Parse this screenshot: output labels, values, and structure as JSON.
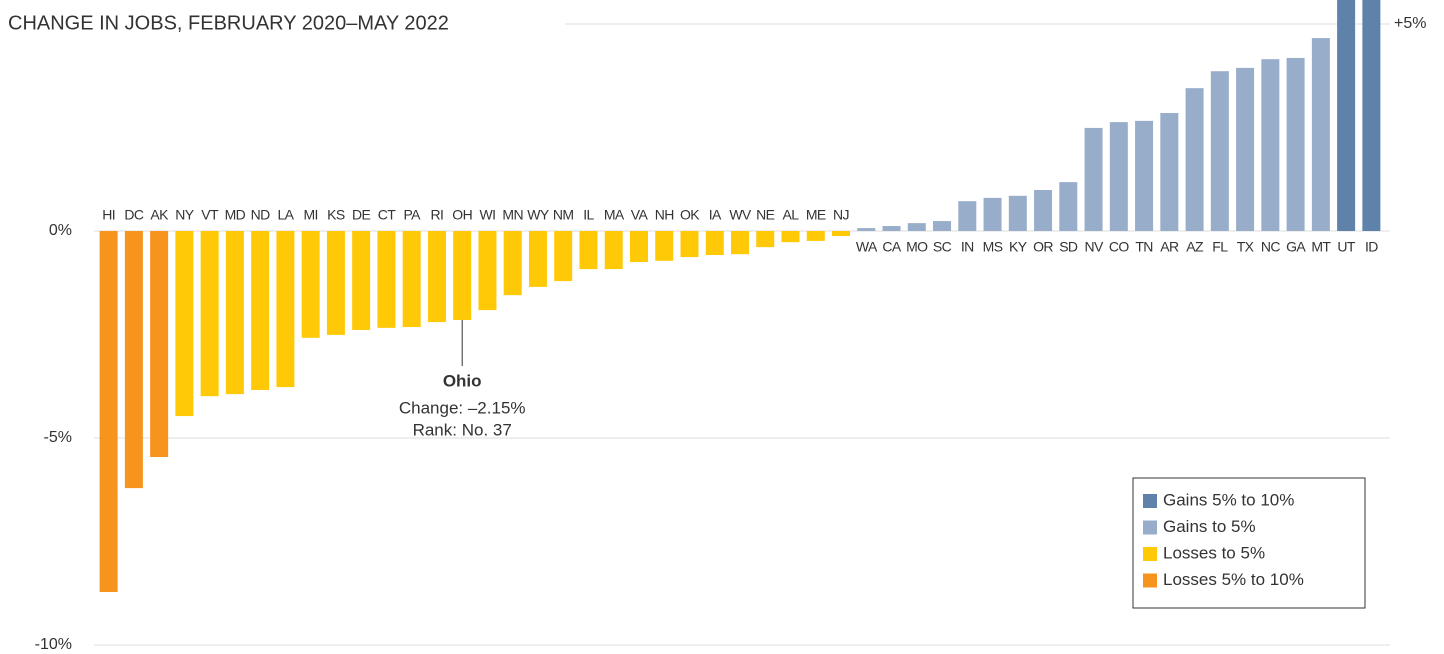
{
  "chart_data": {
    "type": "bar",
    "title": "CHANGE IN JOBS, FEBRUARY 2020–MAY 2022",
    "categories": [
      "HI",
      "DC",
      "AK",
      "NY",
      "VT",
      "MD",
      "ND",
      "LA",
      "MI",
      "KS",
      "DE",
      "CT",
      "PA",
      "RI",
      "OH",
      "WI",
      "MN",
      "WY",
      "NM",
      "IL",
      "MA",
      "VA",
      "NH",
      "OK",
      "IA",
      "WV",
      "NE",
      "AL",
      "ME",
      "NJ",
      "WA",
      "CA",
      "MO",
      "SC",
      "IN",
      "MS",
      "KY",
      "OR",
      "SD",
      "NV",
      "CO",
      "TN",
      "AR",
      "AZ",
      "FL",
      "TX",
      "NC",
      "GA",
      "MT",
      "UT",
      "ID"
    ],
    "values": [
      -8.72,
      -6.21,
      -5.46,
      -4.47,
      -3.99,
      -3.94,
      -3.84,
      -3.77,
      -2.58,
      -2.51,
      -2.39,
      -2.34,
      -2.32,
      -2.2,
      -2.15,
      -1.91,
      -1.55,
      -1.35,
      -1.21,
      -0.92,
      -0.92,
      -0.75,
      -0.72,
      -0.63,
      -0.58,
      -0.56,
      -0.39,
      -0.27,
      -0.24,
      -0.12,
      0.07,
      0.12,
      0.19,
      0.24,
      0.72,
      0.8,
      0.85,
      0.99,
      1.18,
      2.49,
      2.63,
      2.66,
      2.85,
      3.45,
      3.86,
      3.94,
      4.15,
      4.18,
      4.66,
      5.6,
      5.9
    ],
    "colors": [
      "#f7941d",
      "#f7941d",
      "#f7941d",
      "#ffc907",
      "#ffc907",
      "#ffc907",
      "#ffc907",
      "#ffc907",
      "#ffc907",
      "#ffc907",
      "#ffc907",
      "#ffc907",
      "#ffc907",
      "#ffc907",
      "#ffc907",
      "#ffc907",
      "#ffc907",
      "#ffc907",
      "#ffc907",
      "#ffc907",
      "#ffc907",
      "#ffc907",
      "#ffc907",
      "#ffc907",
      "#ffc907",
      "#ffc907",
      "#ffc907",
      "#ffc907",
      "#ffc907",
      "#ffc907",
      "#98adc9",
      "#98adc9",
      "#98adc9",
      "#98adc9",
      "#98adc9",
      "#98adc9",
      "#98adc9",
      "#98adc9",
      "#98adc9",
      "#98adc9",
      "#98adc9",
      "#98adc9",
      "#98adc9",
      "#98adc9",
      "#98adc9",
      "#98adc9",
      "#98adc9",
      "#98adc9",
      "#98adc9",
      "#5f82aa",
      "#5f82aa"
    ],
    "ylim": [
      -10,
      5
    ],
    "yticks": [
      {
        "value": 5,
        "label": "+5%"
      },
      {
        "value": 0,
        "label": "0%"
      },
      {
        "value": -5,
        "label": "-5%"
      },
      {
        "value": -10,
        "label": "-10%"
      }
    ],
    "grid": true,
    "legend": [
      {
        "name": "Gains 5% to 10%",
        "color": "#5f82aa"
      },
      {
        "name": "Gains to 5%",
        "color": "#98adc9"
      },
      {
        "name": "Losses to 5%",
        "color": "#ffc907"
      },
      {
        "name": "Losses 5% to 10%",
        "color": "#f7941d"
      }
    ],
    "legend_position": "lower right",
    "annotation": {
      "name": "Ohio",
      "lines": [
        "Change: –2.15%",
        "Rank: No. 37"
      ]
    }
  }
}
